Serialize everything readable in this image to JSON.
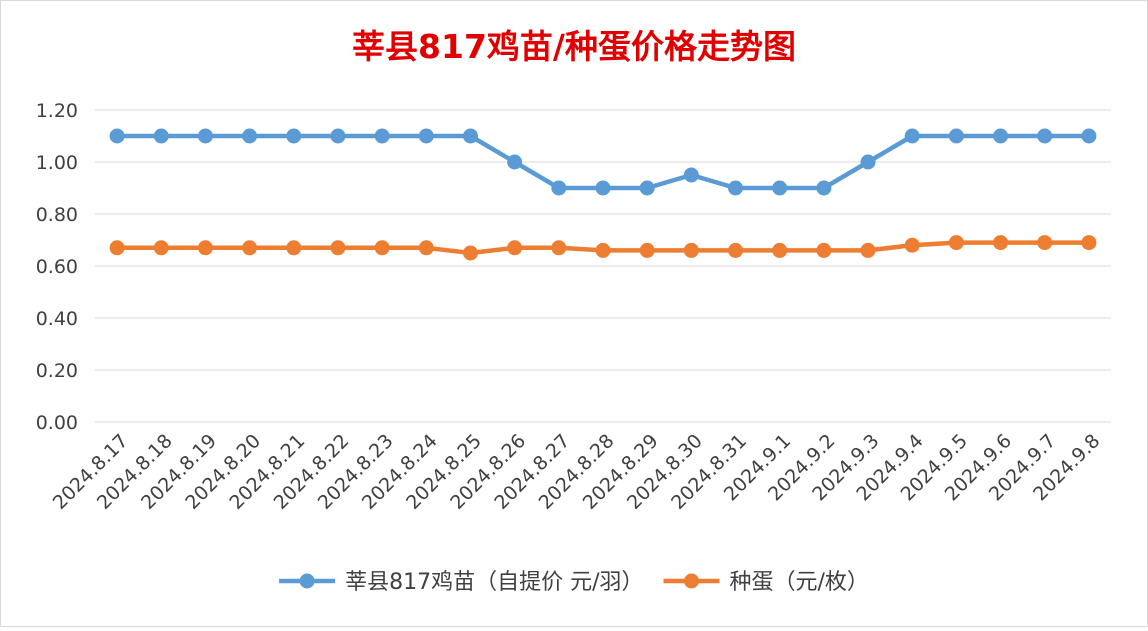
{
  "chart_data": {
    "type": "line",
    "title": "莘县817鸡苗/种蛋价格走势图",
    "xlabel": "",
    "ylabel": "",
    "categories": [
      "2024.8.17",
      "2024.8.18",
      "2024.8.19",
      "2024.8.20",
      "2024.8.21",
      "2024.8.22",
      "2024.8.23",
      "2024.8.24",
      "2024.8.25",
      "2024.8.26",
      "2024.8.27",
      "2024.8.28",
      "2024.8.29",
      "2024.8.30",
      "2024.8.31",
      "2024.9.1",
      "2024.9.2",
      "2024.9.3",
      "2024.9.4",
      "2024.9.5",
      "2024.9.6",
      "2024.9.7",
      "2024.9.8"
    ],
    "ylim": [
      0,
      1.2
    ],
    "yticks": [
      "0.00",
      "0.20",
      "0.40",
      "0.60",
      "0.80",
      "1.00",
      "1.20"
    ],
    "grid": true,
    "legend_position": "bottom",
    "series": [
      {
        "name": "莘县817鸡苗（自提价 元/羽）",
        "color": "#5b9bd5",
        "values": [
          1.1,
          1.1,
          1.1,
          1.1,
          1.1,
          1.1,
          1.1,
          1.1,
          1.1,
          1.0,
          0.9,
          0.9,
          0.9,
          0.95,
          0.9,
          0.9,
          0.9,
          1.0,
          1.1,
          1.1,
          1.1,
          1.1,
          1.1
        ]
      },
      {
        "name": "种蛋（元/枚）",
        "color": "#ed7d31",
        "values": [
          0.67,
          0.67,
          0.67,
          0.67,
          0.67,
          0.67,
          0.67,
          0.67,
          0.65,
          0.67,
          0.67,
          0.66,
          0.66,
          0.66,
          0.66,
          0.66,
          0.66,
          0.66,
          0.68,
          0.69,
          0.69,
          0.69,
          0.69
        ]
      }
    ],
    "title_color": "#e00000",
    "grid_color": "#d9d9d9",
    "text_color": "#404040"
  }
}
